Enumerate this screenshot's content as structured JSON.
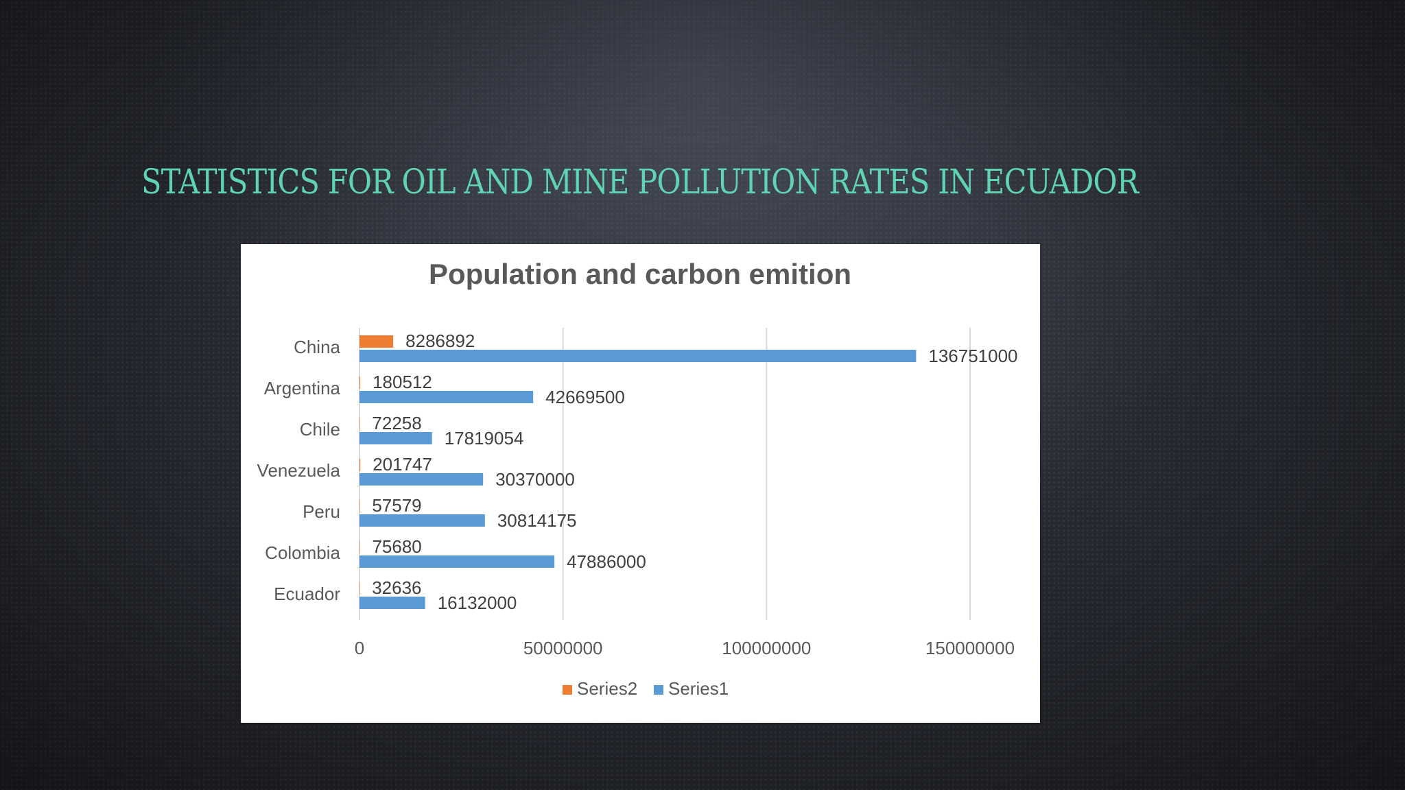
{
  "slide": {
    "title": "STATISTICS FOR OIL AND MINE POLLUTION RATES IN ECUADOR"
  },
  "colors": {
    "title": "#5fd3b4",
    "series1": "#5b9bd5",
    "series2": "#ed7d31",
    "gridline": "#d9d9d9"
  },
  "chart_data": {
    "type": "bar",
    "orientation": "horizontal",
    "title": "Population and carbon emition",
    "categories": [
      "China",
      "Argentina",
      "Chile",
      "Venezuela",
      "Peru",
      "Colombia",
      "Ecuador"
    ],
    "series": [
      {
        "name": "Series2",
        "values": [
          8286892,
          180512,
          72258,
          201747,
          57579,
          75680,
          32636
        ]
      },
      {
        "name": "Series1",
        "values": [
          136751000,
          42669500,
          17819054,
          30370000,
          30814175,
          47886000,
          16132000
        ]
      }
    ],
    "xlim": [
      0,
      150000000
    ],
    "xticks": [
      "0",
      "50000000",
      "100000000",
      "150000000"
    ],
    "grid": true,
    "legend": "bottom"
  }
}
